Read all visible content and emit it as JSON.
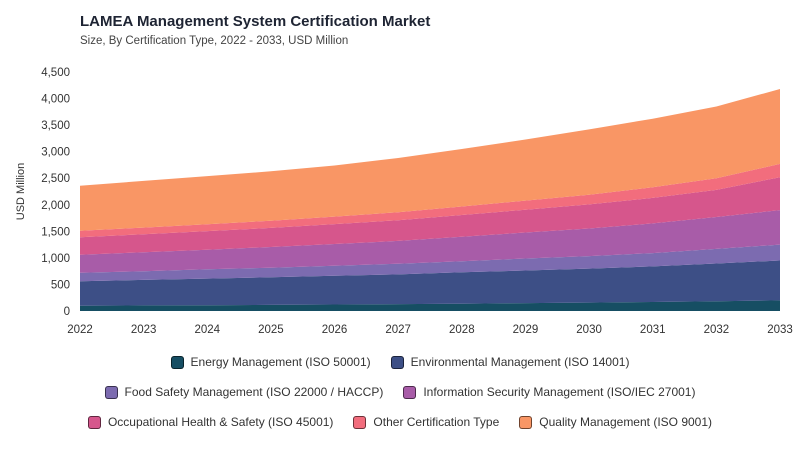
{
  "title": "LAMEA Management System Certification Market",
  "subtitle": "Size, By Certification Type, 2022 - 2033, USD Million",
  "chart_data": {
    "type": "area",
    "stacked": true,
    "title": "LAMEA Management System Certification Market",
    "subtitle": "Size, By Certification Type, 2022 - 2033, USD Million",
    "xlabel": "",
    "ylabel": "USD Million",
    "ylim": [
      0,
      4500
    ],
    "yticks": [
      0,
      500,
      1000,
      1500,
      2000,
      2500,
      3000,
      3500,
      4000,
      4500
    ],
    "ytick_labels": [
      "0",
      "500",
      "1,000",
      "1,500",
      "2,000",
      "2,500",
      "3,000",
      "3,500",
      "4,000",
      "4,500"
    ],
    "x": [
      "2022",
      "2023",
      "2024",
      "2025",
      "2026",
      "2027",
      "2028",
      "2029",
      "2030",
      "2031",
      "2032",
      "2033"
    ],
    "grid": false,
    "legend_position": "bottom",
    "series": [
      {
        "name": "Energy Management (ISO 50001)",
        "color": "#164e63",
        "values": [
          100,
          105,
          110,
          115,
          122,
          130,
          138,
          148,
          158,
          170,
          185,
          200
        ]
      },
      {
        "name": "Environmental Management (ISO 14001)",
        "color": "#3d4f86",
        "values": [
          460,
          480,
          500,
          520,
          540,
          560,
          590,
          615,
          640,
          670,
          710,
          750
        ]
      },
      {
        "name": "Food Safety Management (ISO 22000 / HACCP)",
        "color": "#7c6bb0",
        "values": [
          160,
          165,
          175,
          180,
          190,
          200,
          210,
          225,
          235,
          250,
          275,
          300
        ]
      },
      {
        "name": "Information Security Management (ISO/IEC 27001)",
        "color": "#a85ca8",
        "values": [
          340,
          355,
          370,
          390,
          410,
          430,
          460,
          490,
          520,
          560,
          600,
          650
        ]
      },
      {
        "name": "Occupational Health & Safety (ISO 45001)",
        "color": "#d6568c",
        "values": [
          330,
          340,
          350,
          360,
          375,
          390,
          410,
          430,
          455,
          480,
          510,
          620
        ]
      },
      {
        "name": "Other Certification Type",
        "color": "#f26d7d",
        "values": [
          120,
          125,
          130,
          135,
          140,
          150,
          160,
          170,
          182,
          200,
          220,
          250
        ]
      },
      {
        "name": "Quality Management (ISO 9001)",
        "color": "#f99665",
        "values": [
          850,
          880,
          905,
          930,
          963,
          1020,
          1082,
          1152,
          1230,
          1290,
          1350,
          1410
        ]
      }
    ]
  }
}
